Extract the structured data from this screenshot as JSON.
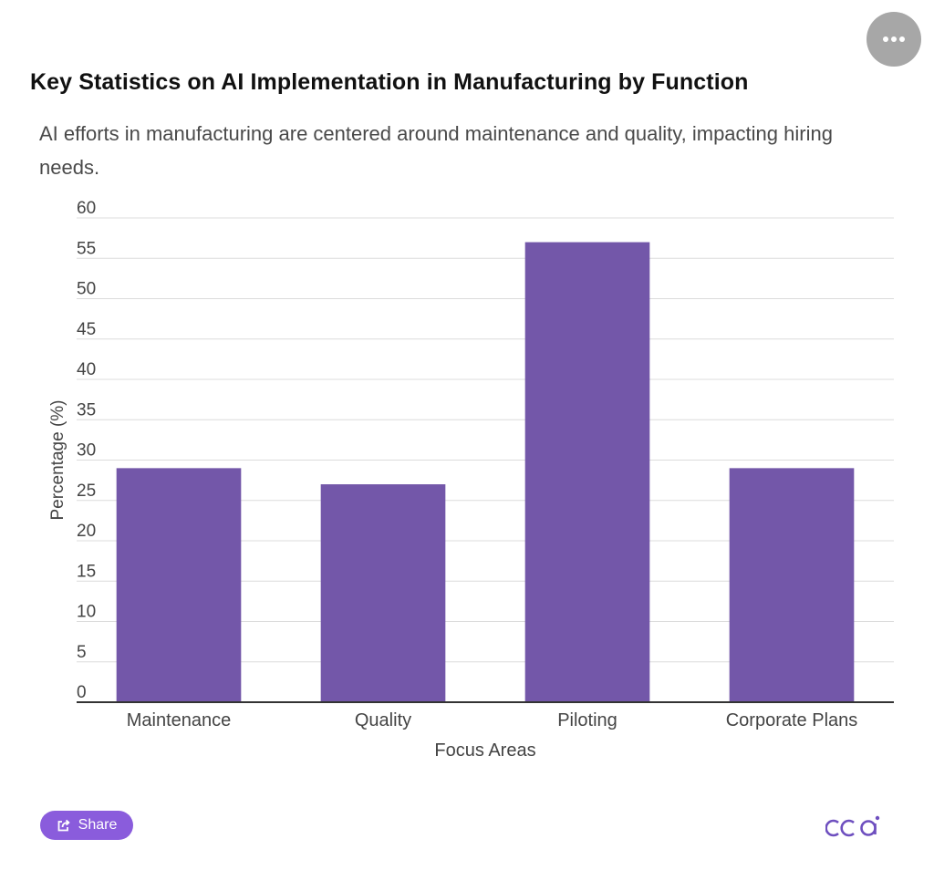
{
  "header": {
    "title": "Key Statistics on AI Implementation in Manufacturing by Function",
    "subtitle": "AI efforts in manufacturing are centered around maintenance and quality, impacting hiring needs."
  },
  "menu": {
    "icon": "more-horizontal-icon"
  },
  "share": {
    "label": "Share",
    "icon": "share-icon"
  },
  "logo": {
    "text": "cca",
    "color": "#6e4fbf"
  },
  "colors": {
    "bar": "#7357a9",
    "share_button": "#8a5cdc",
    "menu_button": "#a7a7a7"
  },
  "chart_data": {
    "type": "bar",
    "categories": [
      "Maintenance",
      "Quality",
      "Piloting",
      "Corporate Plans"
    ],
    "values": [
      29,
      27,
      57,
      29
    ],
    "xlabel": "Focus Areas",
    "ylabel": "Percentage (%)",
    "ylim": [
      0,
      60
    ],
    "yticks": [
      0,
      5,
      10,
      15,
      20,
      25,
      30,
      35,
      40,
      45,
      50,
      55,
      60
    ],
    "grid": true,
    "legend": "none"
  }
}
